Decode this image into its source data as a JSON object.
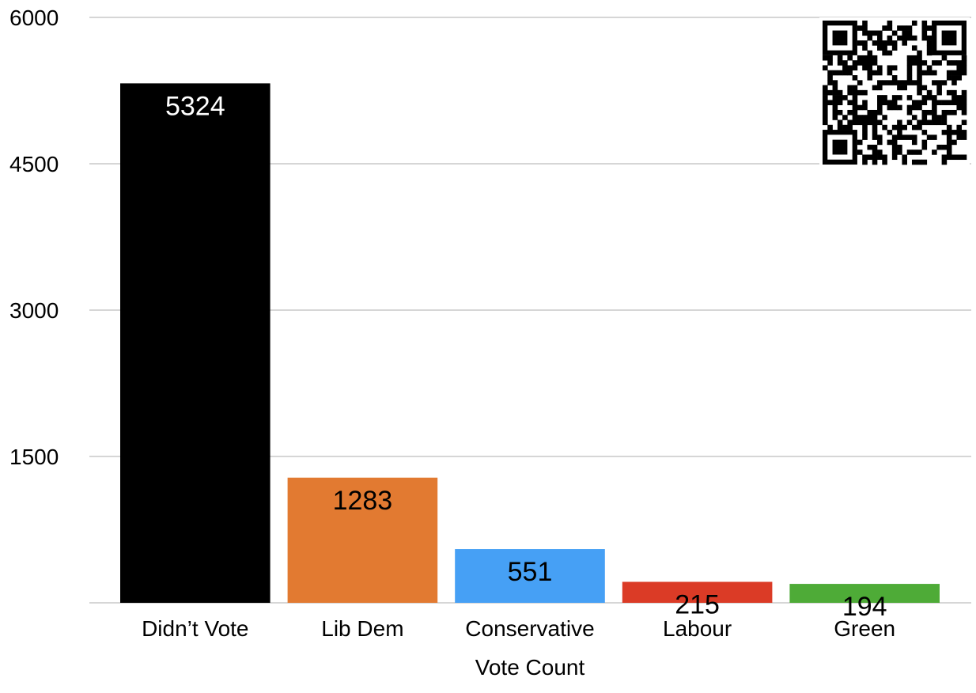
{
  "chart_data": {
    "type": "bar",
    "title": "",
    "xlabel": "Vote Count",
    "ylabel": "",
    "ylim": [
      0,
      6000
    ],
    "yticks": [
      1500,
      3000,
      4500,
      6000
    ],
    "grid": true,
    "legend": "none",
    "categories": [
      "Didn’t Vote",
      "Lib Dem",
      "Conservative",
      "Labour",
      "Green"
    ],
    "values": [
      5324,
      1283,
      551,
      215,
      194
    ],
    "data_labels": [
      "5324",
      "1283",
      "551",
      "215",
      "194"
    ],
    "colors": [
      "#000000",
      "#e27a31",
      "#46a0f5",
      "#db3b26",
      "#4eab37"
    ],
    "label_colors": [
      "#ffffff",
      "#000000",
      "#000000",
      "#000000",
      "#000000"
    ]
  },
  "qr_code": {
    "icon": "qr-code-icon"
  }
}
